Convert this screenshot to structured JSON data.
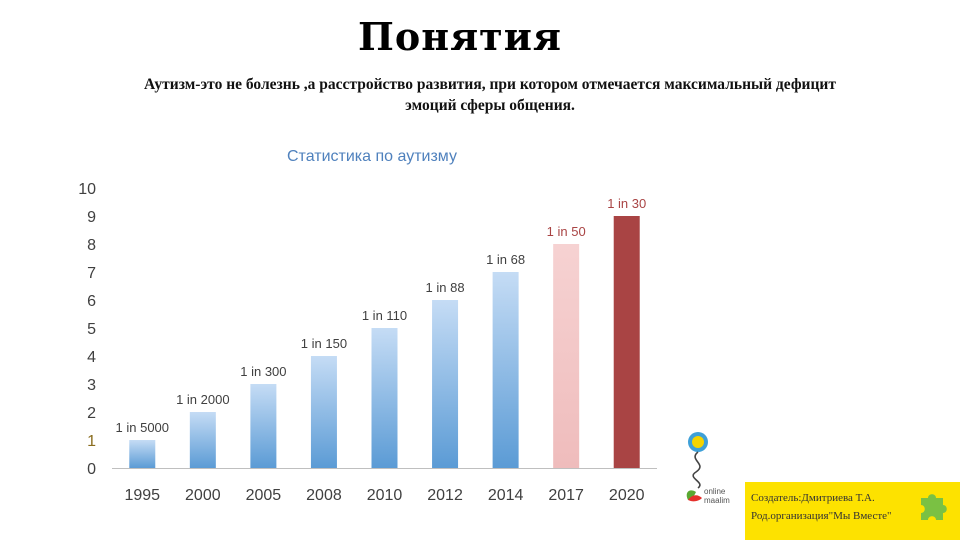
{
  "slide": {
    "title": "Понятия",
    "subtitle_line1": "Аутизм-это не болезнь ,а  расстройство развития, при котором отмечается максимальный дефицит",
    "subtitle_line2": "эмоций сферы общения."
  },
  "logo_text": {
    "line1": "online",
    "line2": "maalim"
  },
  "credit": {
    "line1": "Создатель:Дмитриева Т.А.",
    "line2": "Род.организация\"Мы Вместе\""
  },
  "colors": {
    "accent_blue": "#5b9bd5",
    "pink": "#f2c4c4",
    "dark_red": "#a94444",
    "title_blue": "#4f81bd",
    "credit_yellow": "#fde200"
  },
  "chart_data": {
    "type": "bar",
    "title": "Статистика по аутизму",
    "categories": [
      "1995",
      "2000",
      "2005",
      "2008",
      "2010",
      "2012",
      "2014",
      "2017",
      "2020"
    ],
    "values": [
      1,
      2,
      3,
      4,
      5,
      6,
      7,
      8,
      9
    ],
    "data_labels": [
      "1 in 5000",
      "1 in 2000",
      "1 in 300",
      "1 in 150",
      "1 in 110",
      "1 in 88",
      "1 in 68",
      "1 in 50",
      "1 in 30"
    ],
    "bar_styles": [
      "blue",
      "blue",
      "blue",
      "blue",
      "blue",
      "blue",
      "blue",
      "pink",
      "darkred"
    ],
    "ylim": [
      0,
      10
    ],
    "yticks": [
      0,
      1,
      2,
      3,
      4,
      5,
      6,
      7,
      8,
      9,
      10
    ],
    "xlabel": "",
    "ylabel": "",
    "grid": false,
    "legend": "none"
  }
}
